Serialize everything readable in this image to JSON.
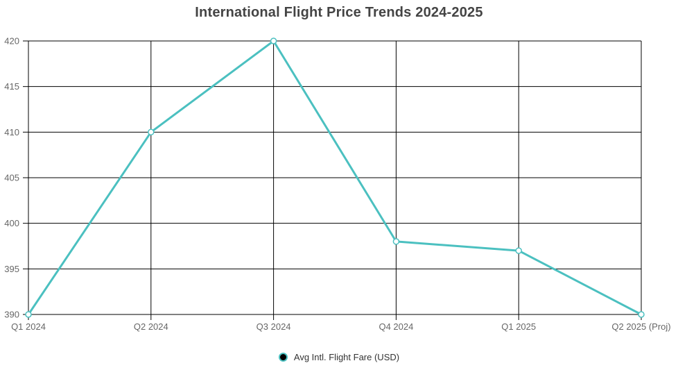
{
  "title": "International Flight Price Trends 2024-2025",
  "legend": {
    "label": "Avg Intl. Flight Fare (USD)",
    "position": "bottom"
  },
  "chart_data": {
    "type": "line",
    "title": "International Flight Price Trends 2024-2025",
    "categories": [
      "Q1 2024",
      "Q2 2024",
      "Q3 2024",
      "Q4 2024",
      "Q1 2025",
      "Q2 2025 (Proj)"
    ],
    "series": [
      {
        "name": "Avg Intl. Flight Fare (USD)",
        "values": [
          390,
          410,
          420,
          398,
          397,
          390
        ]
      }
    ],
    "xlabel": "",
    "ylabel": "",
    "ylim": [
      390,
      420
    ],
    "ytick_step": 5,
    "yticks": [
      390,
      395,
      400,
      405,
      410,
      415,
      420
    ],
    "grid": true,
    "legend_position": "bottom",
    "colors": {
      "line": "#4BC0C0",
      "marker_fill": "#FFFFFF",
      "grid": "#000000",
      "tick_text": "#666666",
      "title_text": "#444444",
      "legend_text": "#333333",
      "legend_marker_fill": "#000000"
    }
  }
}
